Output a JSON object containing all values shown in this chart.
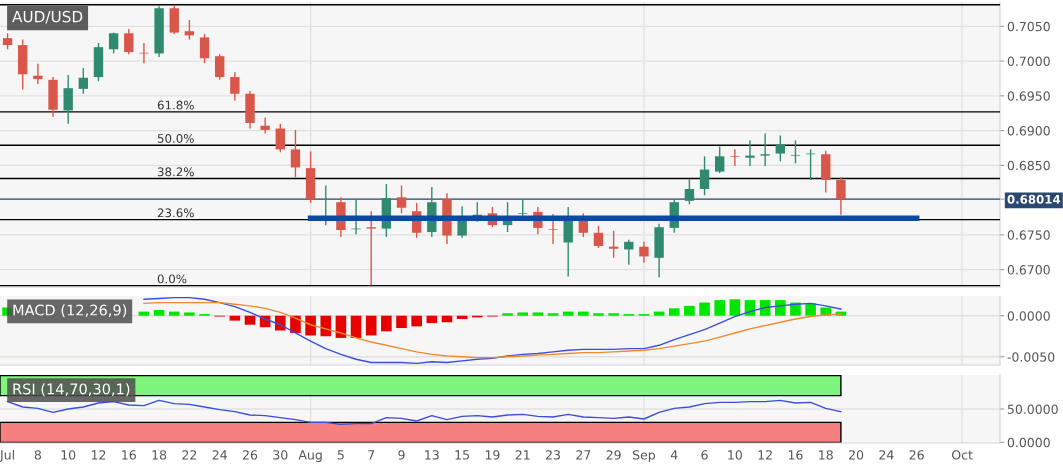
{
  "chart_data": [
    {
      "type": "candlestick",
      "title": "AUD/USD",
      "tick_labels": "y",
      "grid": "y",
      "categories": [
        "Jul",
        null,
        "8",
        null,
        "10",
        null,
        "12",
        null,
        "16",
        null,
        "18",
        null,
        "22",
        null,
        "24",
        null,
        "26",
        null,
        "30",
        null,
        "Aug",
        null,
        "5",
        null,
        "7",
        null,
        "9",
        null,
        "13",
        null,
        "15",
        null,
        "19",
        null,
        "21",
        null,
        "23",
        null,
        "27",
        null,
        "29",
        null,
        "Sep",
        null,
        "4",
        null,
        "6",
        null,
        "10",
        null,
        "12",
        null,
        "16",
        null,
        "18",
        null,
        "20",
        null,
        "24",
        null,
        "26",
        null,
        null,
        "Oct",
        null,
        null
      ],
      "ohlc": [
        [
          0.7033,
          0.704,
          0.7017,
          0.7023
        ],
        [
          0.7023,
          0.7031,
          0.6959,
          0.6981
        ],
        [
          0.6979,
          0.6996,
          0.6967,
          0.6974
        ],
        [
          0.6973,
          0.6977,
          0.692,
          0.693
        ],
        [
          0.6929,
          0.698,
          0.691,
          0.6961
        ],
        [
          0.696,
          0.699,
          0.6953,
          0.6976
        ],
        [
          0.6977,
          0.7026,
          0.6971,
          0.702
        ],
        [
          0.7017,
          0.7041,
          0.7011,
          0.704
        ],
        [
          0.704,
          0.7046,
          0.701,
          0.7013
        ],
        [
          0.7012,
          0.7026,
          0.6997,
          0.7011
        ],
        [
          0.7011,
          0.7079,
          0.7006,
          0.7076
        ],
        [
          0.7076,
          0.7081,
          0.7039,
          0.7041
        ],
        [
          0.7043,
          0.7059,
          0.7031,
          0.7037
        ],
        [
          0.7034,
          0.7039,
          0.6997,
          0.7004
        ],
        [
          0.7007,
          0.701,
          0.6973,
          0.6977
        ],
        [
          0.6977,
          0.6984,
          0.6943,
          0.6953
        ],
        [
          0.6953,
          0.6957,
          0.6903,
          0.6911
        ],
        [
          0.6907,
          0.6919,
          0.6896,
          0.6901
        ],
        [
          0.6903,
          0.691,
          0.6869,
          0.6873
        ],
        [
          0.6873,
          0.6901,
          0.6833,
          0.6847
        ],
        [
          0.6846,
          0.687,
          0.6796,
          0.6801
        ],
        [
          0.6773,
          0.6821,
          0.6764,
          0.6776
        ],
        [
          0.6797,
          0.6804,
          0.6747,
          0.6757
        ],
        [
          0.6758,
          0.6801,
          0.6751,
          0.6759
        ],
        [
          0.6761,
          0.6784,
          0.6677,
          0.6759
        ],
        [
          0.6759,
          0.6823,
          0.6747,
          0.6803
        ],
        [
          0.6804,
          0.6821,
          0.6781,
          0.6789
        ],
        [
          0.6784,
          0.6796,
          0.6746,
          0.6753
        ],
        [
          0.6754,
          0.6819,
          0.6747,
          0.6797
        ],
        [
          0.6801,
          0.681,
          0.6737,
          0.6749
        ],
        [
          0.6749,
          0.6791,
          0.6746,
          0.6774
        ],
        [
          0.6776,
          0.6797,
          0.6769,
          0.6779
        ],
        [
          0.6781,
          0.679,
          0.6761,
          0.6764
        ],
        [
          0.6764,
          0.6797,
          0.6754,
          0.6774
        ],
        [
          0.678,
          0.6801,
          0.6777,
          0.6781
        ],
        [
          0.6783,
          0.679,
          0.6751,
          0.676
        ],
        [
          0.6758,
          0.678,
          0.6737,
          0.6757
        ],
        [
          0.6739,
          0.679,
          0.669,
          0.6774
        ],
        [
          0.6771,
          0.6781,
          0.6747,
          0.6753
        ],
        [
          0.6753,
          0.6763,
          0.6731,
          0.6734
        ],
        [
          0.6733,
          0.6756,
          0.6717,
          0.673
        ],
        [
          0.6729,
          0.6743,
          0.6707,
          0.674
        ],
        [
          0.6733,
          0.674,
          0.671,
          0.6719
        ],
        [
          0.6717,
          0.6766,
          0.6689,
          0.6761
        ],
        [
          0.676,
          0.6801,
          0.6753,
          0.6797
        ],
        [
          0.6799,
          0.683,
          0.6794,
          0.6816
        ],
        [
          0.6816,
          0.6863,
          0.6807,
          0.6844
        ],
        [
          0.6841,
          0.6877,
          0.6839,
          0.6863
        ],
        [
          0.6863,
          0.6873,
          0.6849,
          0.6862
        ],
        [
          0.6861,
          0.6886,
          0.6849,
          0.6864
        ],
        [
          0.6864,
          0.6896,
          0.6849,
          0.6866
        ],
        [
          0.6867,
          0.6893,
          0.6856,
          0.688
        ],
        [
          0.6864,
          0.6886,
          0.6853,
          0.6865
        ],
        [
          0.6866,
          0.6873,
          0.6829,
          0.6867
        ],
        [
          0.6866,
          0.6871,
          0.6811,
          0.6829
        ],
        [
          0.6829,
          0.6833,
          0.6779,
          0.68014
        ],
        null,
        null,
        null,
        null,
        null,
        null,
        null,
        null,
        null,
        null
      ],
      "colors": [
        "#d9574a",
        "#d9574a",
        "#d9574a",
        "#d9574a",
        "#2f8a6f",
        "#2f8a6f",
        "#2f8a6f",
        "#2f8a6f",
        "#d9574a",
        "#d9574a",
        "#2f8a6f",
        "#d9574a",
        "#d9574a",
        "#d9574a",
        "#d9574a",
        "#d9574a",
        "#d9574a",
        "#d9574a",
        "#d9574a",
        "#d9574a",
        "#d9574a",
        "#2f8a6f",
        "#d9574a",
        "#2f8a6f",
        "#d9574a",
        "#2f8a6f",
        "#d9574a",
        "#d9574a",
        "#2f8a6f",
        "#d9574a",
        "#2f8a6f",
        "#2f8a6f",
        "#d9574a",
        "#2f8a6f",
        "#2f8a6f",
        "#d9574a",
        "#d9574a",
        "#2f8a6f",
        "#d9574a",
        "#d9574a",
        "#d9574a",
        "#2f8a6f",
        "#d9574a",
        "#2f8a6f",
        "#2f8a6f",
        "#2f8a6f",
        "#2f8a6f",
        "#2f8a6f",
        "#d9574a",
        "#2f8a6f",
        "#2f8a6f",
        "#2f8a6f",
        "#2f8a6f",
        "#2f8a6f",
        "#d9574a",
        "#d9574a",
        null,
        null,
        null,
        null,
        null,
        null,
        null,
        null,
        null,
        null
      ],
      "ylim": [
        0.6675,
        0.7085
      ],
      "yticks": [
        {
          "value": 0.67,
          "label": "0.6700"
        },
        {
          "value": 0.675,
          "label": "0.6750"
        },
        {
          "value": 0.68014,
          "label": "0.68014"
        },
        {
          "value": 0.685,
          "label": "0.6850"
        },
        {
          "value": 0.69,
          "label": "0.6900"
        },
        {
          "value": 0.695,
          "label": "0.6950"
        },
        {
          "value": 0.7,
          "label": "0.7000"
        },
        {
          "value": 0.705,
          "label": "0.7050"
        }
      ],
      "ref_lines": [
        {
          "axis": "x",
          "value": "Aug",
          "color": "#e2e2e2"
        },
        {
          "axis": "x",
          "value": "Sep",
          "color": "#e2e2e2"
        },
        {
          "axis": "x",
          "value": "Oct",
          "color": "#e2e2e2"
        },
        {
          "axis": "y",
          "value": 0.7081,
          "color": "#000000"
        },
        {
          "axis": "y",
          "value": 0.6927,
          "color": "#000000"
        },
        {
          "axis": "y",
          "value": 0.6879,
          "color": "#000000"
        },
        {
          "axis": "y",
          "value": 0.6831,
          "color": "#000000"
        },
        {
          "axis": "y",
          "value": 0.6772,
          "color": "#000000"
        },
        {
          "axis": "y",
          "value": 0.6677,
          "color": "#000000"
        },
        {
          "axis": "y",
          "value": 0.68014,
          "color": "#2b4870"
        }
      ],
      "annotations": [
        {
          "text": "61.8%",
          "y": 0.6927
        },
        {
          "text": "50.0%",
          "y": 0.6879
        },
        {
          "text": "38.2%",
          "y": 0.6831
        },
        {
          "text": "23.6%",
          "y": 0.6772
        },
        {
          "text": "0.0%",
          "y": 0.6677
        }
      ],
      "series": [
        {
          "type": "line",
          "values": [
            null,
            null,
            null,
            null,
            null,
            null,
            null,
            null,
            null,
            null,
            null,
            null,
            null,
            null,
            null,
            null,
            null,
            null,
            null,
            null,
            0.6774,
            0.6774,
            0.6774,
            0.6774,
            0.6774,
            0.6774,
            0.6774,
            0.6774,
            0.6774,
            0.6774,
            0.6774,
            0.6774,
            0.6774,
            0.6774,
            0.6774,
            0.6774,
            0.6774,
            0.6774,
            0.6774,
            0.6774,
            0.6774,
            0.6774,
            0.6774,
            0.6774,
            0.6774,
            0.6774,
            0.6774,
            0.6774,
            0.6774,
            0.6774,
            0.6774,
            0.6774,
            0.6774,
            0.6774,
            0.6774,
            0.6774,
            0.6774,
            0.6774,
            0.6774,
            0.6774,
            0.6774,
            null,
            null,
            null,
            null,
            null
          ],
          "color": "#0b4a9e"
        }
      ]
    },
    {
      "type": "bar",
      "title": "MACD (12,26,9)",
      "tick_labels": "y",
      "grid": "y",
      "categories": [
        "Jul",
        null,
        "8",
        null,
        "10",
        null,
        "12",
        null,
        "16",
        null,
        "18",
        null,
        "22",
        null,
        "24",
        null,
        "26",
        null,
        "30",
        null,
        "Aug",
        null,
        "5",
        null,
        "7",
        null,
        "9",
        null,
        "13",
        null,
        "15",
        null,
        "19",
        null,
        "21",
        null,
        "23",
        null,
        "27",
        null,
        "29",
        null,
        "Sep",
        null,
        "4",
        null,
        "6",
        null,
        "10",
        null,
        "12",
        null,
        "16",
        null,
        "18",
        null,
        "20",
        null,
        "24",
        null,
        "26",
        null,
        null,
        "Oct",
        null,
        null
      ],
      "ylim": [
        -0.006,
        0.0024
      ],
      "yticks": [
        {
          "value": -0.005,
          "label": "-0.0050"
        },
        {
          "value": 0,
          "label": "0.0000"
        }
      ],
      "ref_lines": [
        {
          "axis": "x",
          "value": "Aug",
          "color": "#e2e2e2"
        },
        {
          "axis": "x",
          "value": "Sep",
          "color": "#e2e2e2"
        },
        {
          "axis": "x",
          "value": "Oct",
          "color": "#e2e2e2"
        }
      ],
      "series": [
        {
          "type": "bar",
          "values": [
            0.001,
            null,
            null,
            null,
            null,
            null,
            null,
            null,
            null,
            0.0005,
            0.0007,
            0.0005,
            0.0004,
            0.0002,
            -0.0001,
            -0.0006,
            -0.0011,
            -0.0014,
            -0.0018,
            -0.0021,
            -0.0024,
            -0.0025,
            -0.0027,
            -0.0027,
            -0.0024,
            -0.0019,
            -0.0015,
            -0.0013,
            -0.0009,
            -0.0008,
            -0.0004,
            -0.0002,
            -0.0001,
            0.0003,
            0.0004,
            0.0004,
            0.0003,
            0.0005,
            0.0005,
            0.0003,
            0.0003,
            0.0002,
            0.0002,
            0.0005,
            0.0009,
            0.0012,
            0.0016,
            0.0019,
            0.002,
            0.0019,
            0.0019,
            0.0019,
            0.0016,
            0.0015,
            0.001,
            0.0005,
            null,
            null,
            null,
            null,
            null,
            null,
            null,
            null,
            null,
            null
          ],
          "colors": [
            "#00e600",
            null,
            null,
            null,
            null,
            null,
            null,
            null,
            null,
            "#00e600",
            "#00e600",
            "#00e600",
            "#00e600",
            "#00e600",
            "#e60000",
            "#e60000",
            "#e60000",
            "#e60000",
            "#e60000",
            "#e60000",
            "#e60000",
            "#e60000",
            "#e60000",
            "#e60000",
            "#e60000",
            "#e60000",
            "#e60000",
            "#e60000",
            "#e60000",
            "#e60000",
            "#e60000",
            "#e60000",
            "#e60000",
            "#00e600",
            "#00e600",
            "#00e600",
            "#00e600",
            "#00e600",
            "#00e600",
            "#00e600",
            "#00e600",
            "#00e600",
            "#00e600",
            "#00e600",
            "#00e600",
            "#00e600",
            "#00e600",
            "#00e600",
            "#00e600",
            "#00e600",
            "#00e600",
            "#00e600",
            "#00e600",
            "#00e600",
            "#00e600",
            "#00e600",
            null,
            null,
            null,
            null,
            null,
            null,
            null,
            null,
            null,
            null
          ]
        },
        {
          "type": "line",
          "color": "#3a4fd8",
          "values": [
            null,
            null,
            null,
            null,
            null,
            null,
            null,
            null,
            null,
            0.002,
            0.0021,
            0.0022,
            0.0022,
            0.002,
            0.0016,
            0.0011,
            0.0004,
            -0.0004,
            -0.0011,
            -0.0021,
            -0.0031,
            -0.004,
            -0.0047,
            -0.0053,
            -0.0057,
            -0.0057,
            -0.0057,
            -0.0058,
            -0.0056,
            -0.0057,
            -0.0055,
            -0.0053,
            -0.0052,
            -0.0049,
            -0.0047,
            -0.0046,
            -0.0044,
            -0.0042,
            -0.0041,
            -0.0041,
            -0.0041,
            -0.004,
            -0.004,
            -0.0036,
            -0.0029,
            -0.0023,
            -0.0017,
            -0.0009,
            -0.0001,
            0.0005,
            0.001,
            0.0012,
            0.0014,
            0.0015,
            0.0012,
            0.0008,
            null,
            null,
            null,
            null,
            null,
            null,
            null,
            null,
            null,
            null
          ]
        },
        {
          "type": "line",
          "color": "#f08a30",
          "values": [
            null,
            null,
            null,
            null,
            null,
            null,
            null,
            null,
            null,
            0.0015,
            0.0016,
            0.0016,
            0.0016,
            0.0016,
            0.0016,
            0.0014,
            0.0012,
            0.0009,
            0.0004,
            -0.0003,
            -0.0011,
            -0.0016,
            -0.0021,
            -0.0027,
            -0.0032,
            -0.0036,
            -0.004,
            -0.0044,
            -0.0047,
            -0.0049,
            -0.005,
            -0.0051,
            -0.0051,
            -0.005,
            -0.0049,
            -0.0048,
            -0.0047,
            -0.0046,
            -0.0045,
            -0.0045,
            -0.0044,
            -0.0043,
            -0.0042,
            -0.004,
            -0.0037,
            -0.0034,
            -0.0031,
            -0.0026,
            -0.0021,
            -0.0016,
            -0.0012,
            -0.0008,
            -0.0004,
            -0.0001,
            0.0001,
            0.0002,
            null,
            null,
            null,
            null,
            null,
            null,
            null,
            null,
            null,
            null
          ]
        }
      ]
    },
    {
      "type": "line",
      "title": "RSI (14,70,30,1)",
      "categories": [
        "Jul",
        null,
        "8",
        null,
        "10",
        null,
        "12",
        null,
        "16",
        null,
        "18",
        null,
        "22",
        null,
        "24",
        null,
        "26",
        null,
        "30",
        null,
        "Aug",
        null,
        "5",
        null,
        "7",
        null,
        "9",
        null,
        "13",
        null,
        "15",
        null,
        "19",
        null,
        "21",
        null,
        "23",
        null,
        "27",
        null,
        "29",
        null,
        "Sep",
        null,
        "4",
        null,
        "6",
        null,
        "10",
        null,
        "12",
        null,
        "16",
        null,
        "18",
        null,
        "20",
        null,
        "24",
        null,
        "26",
        null,
        null,
        "Oct",
        null,
        null
      ],
      "ylim": [
        -1,
        101
      ],
      "yticks": [
        {
          "value": 0,
          "label": "0.0000"
        },
        {
          "value": 50,
          "label": "50.0000"
        }
      ],
      "ref_lines": [
        {
          "axis": "x",
          "value": "Aug",
          "color": "#e2e2e2"
        },
        {
          "axis": "x",
          "value": "Sep",
          "color": "#e2e2e2"
        },
        {
          "axis": "x",
          "value": "Oct",
          "color": "#e2e2e2"
        },
        {
          "axis": "y",
          "value": 50,
          "color": "#e2e2e2"
        }
      ],
      "bands": [
        {
          "axis": "y",
          "from": 70,
          "to": 100,
          "color": "#7ff57f"
        },
        {
          "axis": "y",
          "from": 0,
          "to": 30,
          "color": "#f67f7f"
        }
      ],
      "series": [
        {
          "type": "line",
          "color": "#3a4fd8",
          "values": [
            61,
            53,
            51,
            45,
            50,
            53,
            59,
            61,
            56,
            55,
            63,
            58,
            57,
            53,
            49,
            46,
            41,
            40,
            37,
            34,
            30,
            30,
            27,
            28,
            28,
            37,
            36,
            32,
            40,
            34,
            39,
            40,
            38,
            41,
            42,
            39,
            38,
            42,
            38,
            37,
            36,
            38,
            35,
            45,
            51,
            53,
            58,
            60,
            60,
            61,
            61,
            63,
            59,
            60,
            51,
            46,
            null,
            null,
            null,
            null,
            null,
            null,
            null,
            null,
            null,
            null
          ]
        }
      ]
    }
  ]
}
